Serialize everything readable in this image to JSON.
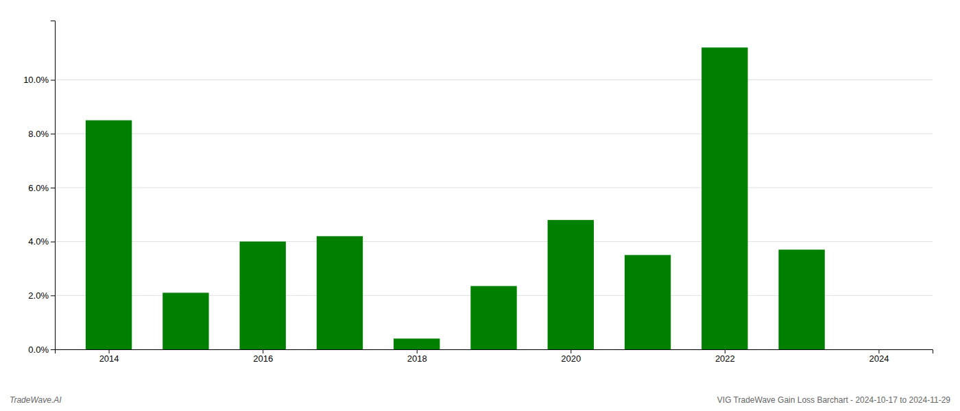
{
  "chart_data": {
    "type": "bar",
    "x": [
      2014,
      2015,
      2016,
      2017,
      2018,
      2019,
      2020,
      2021,
      2022,
      2023
    ],
    "values": [
      0.085,
      0.021,
      0.04,
      0.042,
      0.004,
      0.0235,
      0.048,
      0.035,
      0.112,
      0.037
    ],
    "color": "#008000",
    "xlim": [
      2013.3,
      2024.7
    ],
    "xticks": [
      2014,
      2016,
      2018,
      2020,
      2022,
      2024
    ],
    "ylim": [
      0,
      0.122
    ],
    "yticks": [
      {
        "value": 0.0,
        "label": "0.0%"
      },
      {
        "value": 0.02,
        "label": "2.0%"
      },
      {
        "value": 0.04,
        "label": "4.0%"
      },
      {
        "value": 0.06,
        "label": "6.0%"
      },
      {
        "value": 0.08,
        "label": "8.0%"
      },
      {
        "value": 0.1,
        "label": "10.0%"
      }
    ],
    "grid": true,
    "annotations": [
      "TradeWave.AI",
      "VIG TradeWave Gain Loss Barchart - 2024-10-17 to 2024-11-29"
    ]
  }
}
